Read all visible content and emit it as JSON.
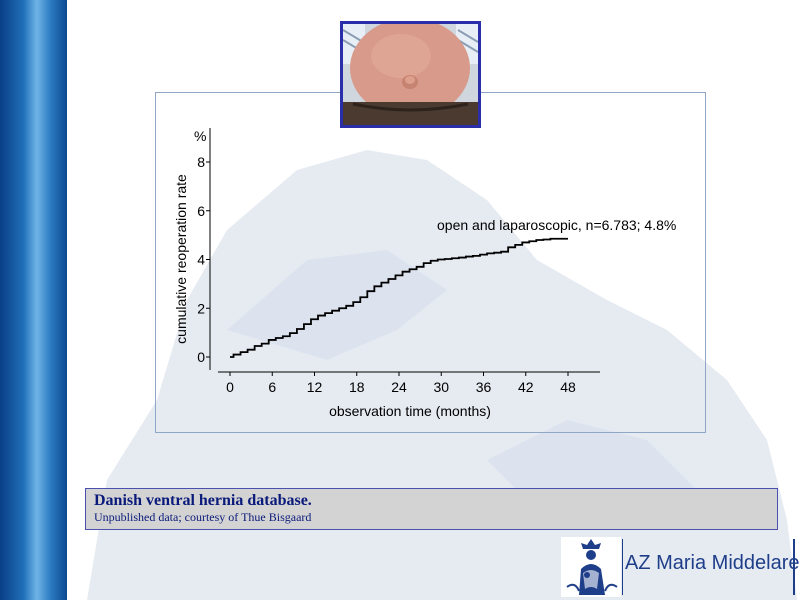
{
  "caption": {
    "title": "Danish ventral hernia database.",
    "subtitle": "Unpublished data;  courtesy of Thue Bisgaard"
  },
  "logo": {
    "text": "AZ Maria Middelares"
  },
  "colors": {
    "left_bar": "#1f6fb8",
    "caption_bg": "#d3d3d3",
    "caption_text": "#0a1a7a",
    "photo_border": "#2a2ea8",
    "logo_text": "#1f3e8a"
  },
  "icons": {
    "photo": "abdomen-hernia-photo",
    "logo": "madonna-logo-icon"
  },
  "chart_data": {
    "type": "line",
    "ylabel": "cumulative reoperation rate",
    "yunit": "%",
    "xlabel": "observation time (months)",
    "xlim": [
      0,
      48
    ],
    "ylim": [
      0,
      8
    ],
    "xticks": [
      0,
      6,
      12,
      18,
      24,
      30,
      36,
      42,
      48
    ],
    "yticks": [
      0,
      2,
      4,
      6,
      8
    ],
    "grid": false,
    "annotation": "open and laparoscopic, n=6.783; 4.8%",
    "series": [
      {
        "name": "open and laparoscopic, n=6.783; 4.8%",
        "step": true,
        "x": [
          0,
          1,
          2,
          3,
          4,
          5,
          6,
          7,
          8,
          9,
          10,
          11,
          12,
          13,
          14,
          15,
          16,
          17,
          18,
          19,
          20,
          21,
          22,
          23,
          24,
          25,
          26,
          27,
          28,
          29,
          30,
          31,
          32,
          33,
          34,
          35,
          36,
          37,
          38,
          39,
          40,
          41,
          42,
          43,
          44,
          45,
          46,
          47,
          48
        ],
        "y": [
          0,
          0.1,
          0.2,
          0.3,
          0.45,
          0.55,
          0.7,
          0.78,
          0.85,
          0.98,
          1.15,
          1.35,
          1.55,
          1.7,
          1.8,
          1.9,
          2.0,
          2.1,
          2.25,
          2.45,
          2.7,
          2.9,
          3.05,
          3.2,
          3.35,
          3.5,
          3.6,
          3.7,
          3.85,
          3.95,
          4.0,
          4.02,
          4.05,
          4.08,
          4.12,
          4.15,
          4.2,
          4.25,
          4.28,
          4.32,
          4.5,
          4.6,
          4.7,
          4.75,
          4.8,
          4.82,
          4.85,
          4.85,
          4.85
        ]
      }
    ]
  }
}
